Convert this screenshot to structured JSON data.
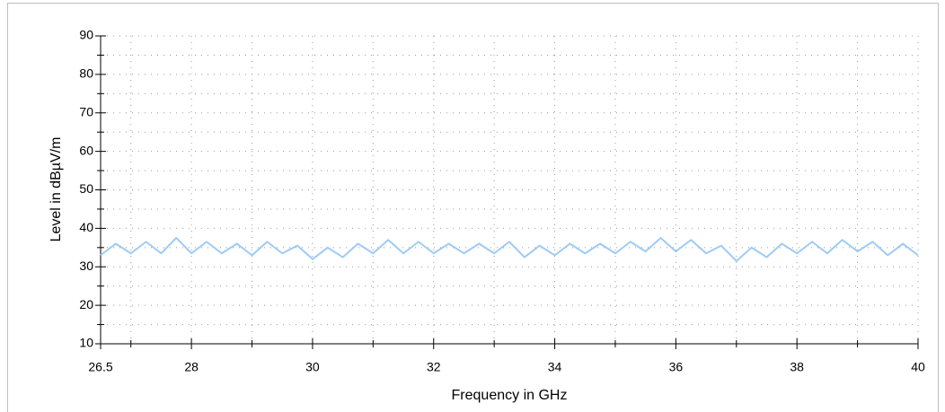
{
  "chart_data": {
    "type": "line",
    "xlabel": "Frequency in GHz",
    "ylabel": "Level in dBµV/m",
    "x": [
      26.5,
      26.75,
      27.0,
      27.25,
      27.5,
      27.75,
      28.0,
      28.25,
      28.5,
      28.75,
      29.0,
      29.25,
      29.5,
      29.75,
      30.0,
      30.25,
      30.5,
      30.75,
      31.0,
      31.25,
      31.5,
      31.75,
      32.0,
      32.25,
      32.5,
      32.75,
      33.0,
      33.25,
      33.5,
      33.75,
      34.0,
      34.25,
      34.5,
      34.75,
      35.0,
      35.25,
      35.5,
      35.75,
      36.0,
      36.25,
      36.5,
      36.75,
      37.0,
      37.25,
      37.5,
      37.75,
      38.0,
      38.25,
      38.5,
      38.75,
      39.0,
      39.25,
      39.5,
      39.75,
      40.0
    ],
    "series": [
      {
        "color": "#9ecbf5",
        "values": [
          33,
          36,
          33.5,
          36.5,
          33.5,
          37.5,
          33.5,
          36.5,
          33.5,
          36,
          33,
          36.5,
          33.5,
          35.5,
          32,
          35,
          32.5,
          36,
          33.5,
          37,
          33.5,
          36.5,
          33.5,
          36,
          33.5,
          36,
          33.5,
          36.5,
          32.5,
          35.5,
          33,
          36,
          33.5,
          36,
          33.5,
          36.5,
          34,
          37.5,
          34,
          37,
          33.5,
          35.5,
          31.5,
          35,
          32.5,
          36,
          33.5,
          36.5,
          33.5,
          37,
          34,
          36.5,
          33,
          36,
          33
        ]
      }
    ],
    "xlim": [
      26.5,
      40
    ],
    "xticks": [
      26.5,
      28,
      30,
      32,
      34,
      36,
      38,
      40
    ],
    "xminorticks": [
      27,
      29,
      31,
      33,
      35,
      37,
      39
    ],
    "ylim": [
      10,
      90
    ],
    "yticks": [
      10,
      20,
      30,
      40,
      50,
      60,
      70,
      80,
      90
    ],
    "yminorticks": [
      15,
      25,
      35,
      45,
      55,
      65,
      75,
      85
    ],
    "grid": true
  }
}
